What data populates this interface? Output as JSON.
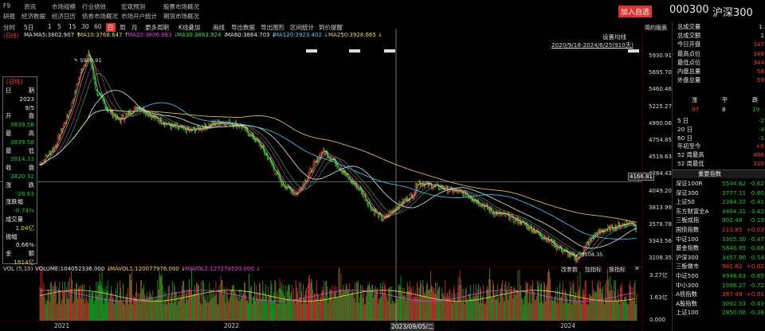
{
  "topnav": {
    "row1": [
      "F9",
      "资讯",
      "市场规模",
      "行业绩效",
      "宏观预测",
      "股票市场概况"
    ],
    "row2": [
      "研报",
      "经济数据",
      "经济日历",
      "债券市场概况",
      "市场开户统计",
      "期货市场概况"
    ]
  },
  "header": {
    "add_button": "加入自选",
    "code": "000300",
    "name": "沪深300"
  },
  "timeframe": [
    "分时",
    "5日",
    "1",
    "5",
    "15",
    "30",
    "60",
    "日",
    "周",
    "月",
    "更多周期",
    "K线叠加",
    "画线",
    "导出数据",
    "导出图形",
    "区间统计",
    "到价提醒"
  ],
  "timeframe_active": "日",
  "ma": {
    "prefix": "(日线)",
    "items": [
      {
        "label": "MA5:3802.907 ↑",
        "color": "#e8e8e8"
      },
      {
        "label": "MA10:3768.647 ↑",
        "color": "#e8d84a"
      },
      {
        "label": "MA20:3806.883 ↓",
        "color": "#e040e0"
      },
      {
        "label": "MA30:3863.924 ↓",
        "color": "#3ee04e"
      },
      {
        "label": "MA60:3864.703 ↓",
        "color": "#e8e8e8"
      },
      {
        "label": "MA120:3923.402 ↓",
        "color": "#3fd0ff"
      },
      {
        "label": "MA250:3928.665 ↓",
        "color": "#f0d060"
      }
    ]
  },
  "chart_tools": {
    "settings": "设置均线",
    "range": "2020/9/18-2024/6/25(910天)"
  },
  "price_axis": [
    "5930.91",
    "5695.70",
    "5460.46",
    "5225.27",
    "4990.06",
    "4754.85",
    "4519.63",
    "4284.43",
    "4049.20",
    "3813.99",
    "3578.78",
    "3343.56",
    "3108.35"
  ],
  "crosshair_price": "4166.81",
  "annotations": {
    "high": "5930.91",
    "low": "3108.35"
  },
  "tooltip": {
    "title": "[日线]",
    "rows": [
      {
        "label": "日",
        "value": "期"
      },
      {
        "label": "",
        "value": "2023"
      },
      {
        "label": "",
        "value": "9/5"
      },
      {
        "label": "开",
        "value": "盘"
      },
      {
        "label": "",
        "value": "3839.58"
      },
      {
        "label": "最",
        "value": "高"
      },
      {
        "label": "",
        "value": "3839.58"
      },
      {
        "label": "最",
        "value": "低"
      },
      {
        "label": "",
        "value": "3814.33"
      },
      {
        "label": "收",
        "value": "盘"
      },
      {
        "label": "",
        "value": "3820.32"
      },
      {
        "label": "涨",
        "value": "跌"
      },
      {
        "label": "",
        "value": "-28.63"
      },
      {
        "label": "涨跌幅",
        "value": ""
      },
      {
        "label": "",
        "value": "-0.74%"
      },
      {
        "label": "成交量",
        "value": ""
      },
      {
        "label": "",
        "value": "1.04亿"
      },
      {
        "label": "振幅",
        "value": ""
      },
      {
        "label": "",
        "value": "0.66%"
      },
      {
        "label": "金",
        "value": "额"
      },
      {
        "label": "",
        "value": "1814亿"
      }
    ]
  },
  "volume": {
    "prefix": "VOL (5,10)",
    "volume_label": "VOLUME:104052336.000 ↓",
    "mavol1": "MAVOL1:120077976.000 ↓",
    "mavol2": "MAVOL2:127274520.000 ↓",
    "tools": [
      "改参数",
      "加指标",
      "换指标"
    ],
    "axis": [
      "3.27亿",
      "1.63亿",
      "0.000"
    ]
  },
  "time_axis": [
    "2021",
    "2022",
    "2023/09/05/二",
    "2024"
  ],
  "right_panel": {
    "title": "简约版面",
    "stats": [
      {
        "label": "总成交量",
        "value": "1."
      },
      {
        "label": "总成交额",
        "value": "1"
      },
      {
        "label": "今日开盘",
        "value": "347"
      },
      {
        "label": "最高点位",
        "value": "348"
      },
      {
        "label": "最低点位",
        "value": "344"
      },
      {
        "label": "内盘总量",
        "value": "58"
      },
      {
        "label": "外盘总量",
        "value": "59"
      }
    ],
    "breadth": {
      "headers": [
        "涨",
        "平",
        "跌"
      ],
      "values": [
        "97",
        "8",
        "19"
      ]
    },
    "periods": [
      {
        "label": "5 日",
        "value": "-2"
      },
      {
        "label": "20 日",
        "value": "-4"
      },
      {
        "label": "60 日",
        "value": "-1"
      },
      {
        "label": "年初至今",
        "value": "+0"
      },
      {
        "label": "52 周最高",
        "value": "406"
      },
      {
        "label": "52 周最低",
        "value": "310"
      }
    ],
    "indices_title": "重要指数",
    "indices": [
      {
        "name": "深证100R",
        "value": "5544.62",
        "change": "-0.62"
      },
      {
        "name": "深证300",
        "value": "3777.11",
        "change": "-0.80"
      },
      {
        "name": "上证50",
        "value": "2394.22",
        "change": "-0.41"
      },
      {
        "name": "东方财富全A",
        "value": "4404.31",
        "change": "-3.42"
      },
      {
        "name": "三板成指",
        "value": "802.48",
        "change": "-0.19"
      },
      {
        "name": "国债指数",
        "value": "213.85",
        "change": "+0.03"
      },
      {
        "name": "中证100",
        "value": "3305.30",
        "change": "-0.47"
      },
      {
        "name": "基金指数",
        "value": "5840.95",
        "change": "-0.68"
      },
      {
        "name": "沪深300",
        "value": "3457.90",
        "change": "-0.54"
      },
      {
        "name": "三板做市",
        "value": "981.82",
        "change": "+0.02"
      },
      {
        "name": "中证500",
        "value": "4948.63",
        "change": "-0.85"
      },
      {
        "name": "中小300",
        "value": "1096.27",
        "change": "-0.72"
      },
      {
        "name": "A债指数",
        "value": "287.49",
        "change": "+0.01"
      },
      {
        "name": "A股指数",
        "value": "3092.53",
        "change": "-0.43"
      },
      {
        "name": "上证100",
        "value": "2850.00",
        "change": "-0.38"
      }
    ]
  },
  "colors": {
    "up": "#ff3b3b",
    "down": "#17c82f",
    "accent": "#d33",
    "bg": "#000000",
    "grid": "#2a0000"
  }
}
